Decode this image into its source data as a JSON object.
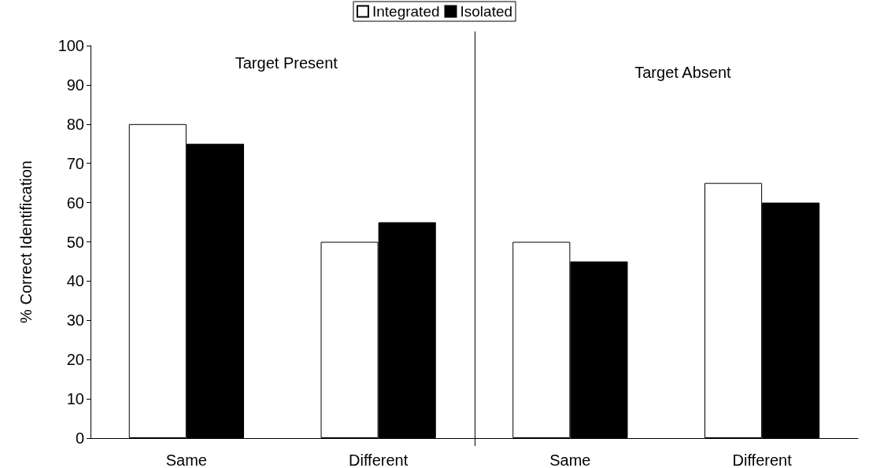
{
  "chart_data": {
    "type": "bar",
    "ylabel": "% Correct Identification",
    "categories": [
      "Same",
      "Different",
      "Same",
      "Different"
    ],
    "series": [
      {
        "name": "Integrated",
        "color": "#ffffff",
        "values": [
          80,
          50,
          50,
          65
        ]
      },
      {
        "name": "Isolated",
        "color": "#000000",
        "values": [
          75,
          55,
          45,
          60
        ]
      }
    ],
    "ylim": [
      0,
      100
    ],
    "yticks": [
      0,
      10,
      20,
      30,
      40,
      50,
      60,
      70,
      80,
      90,
      100
    ],
    "annotations": [
      "Target Present",
      "Target Absent"
    ],
    "legend": "top",
    "grid": false
  }
}
